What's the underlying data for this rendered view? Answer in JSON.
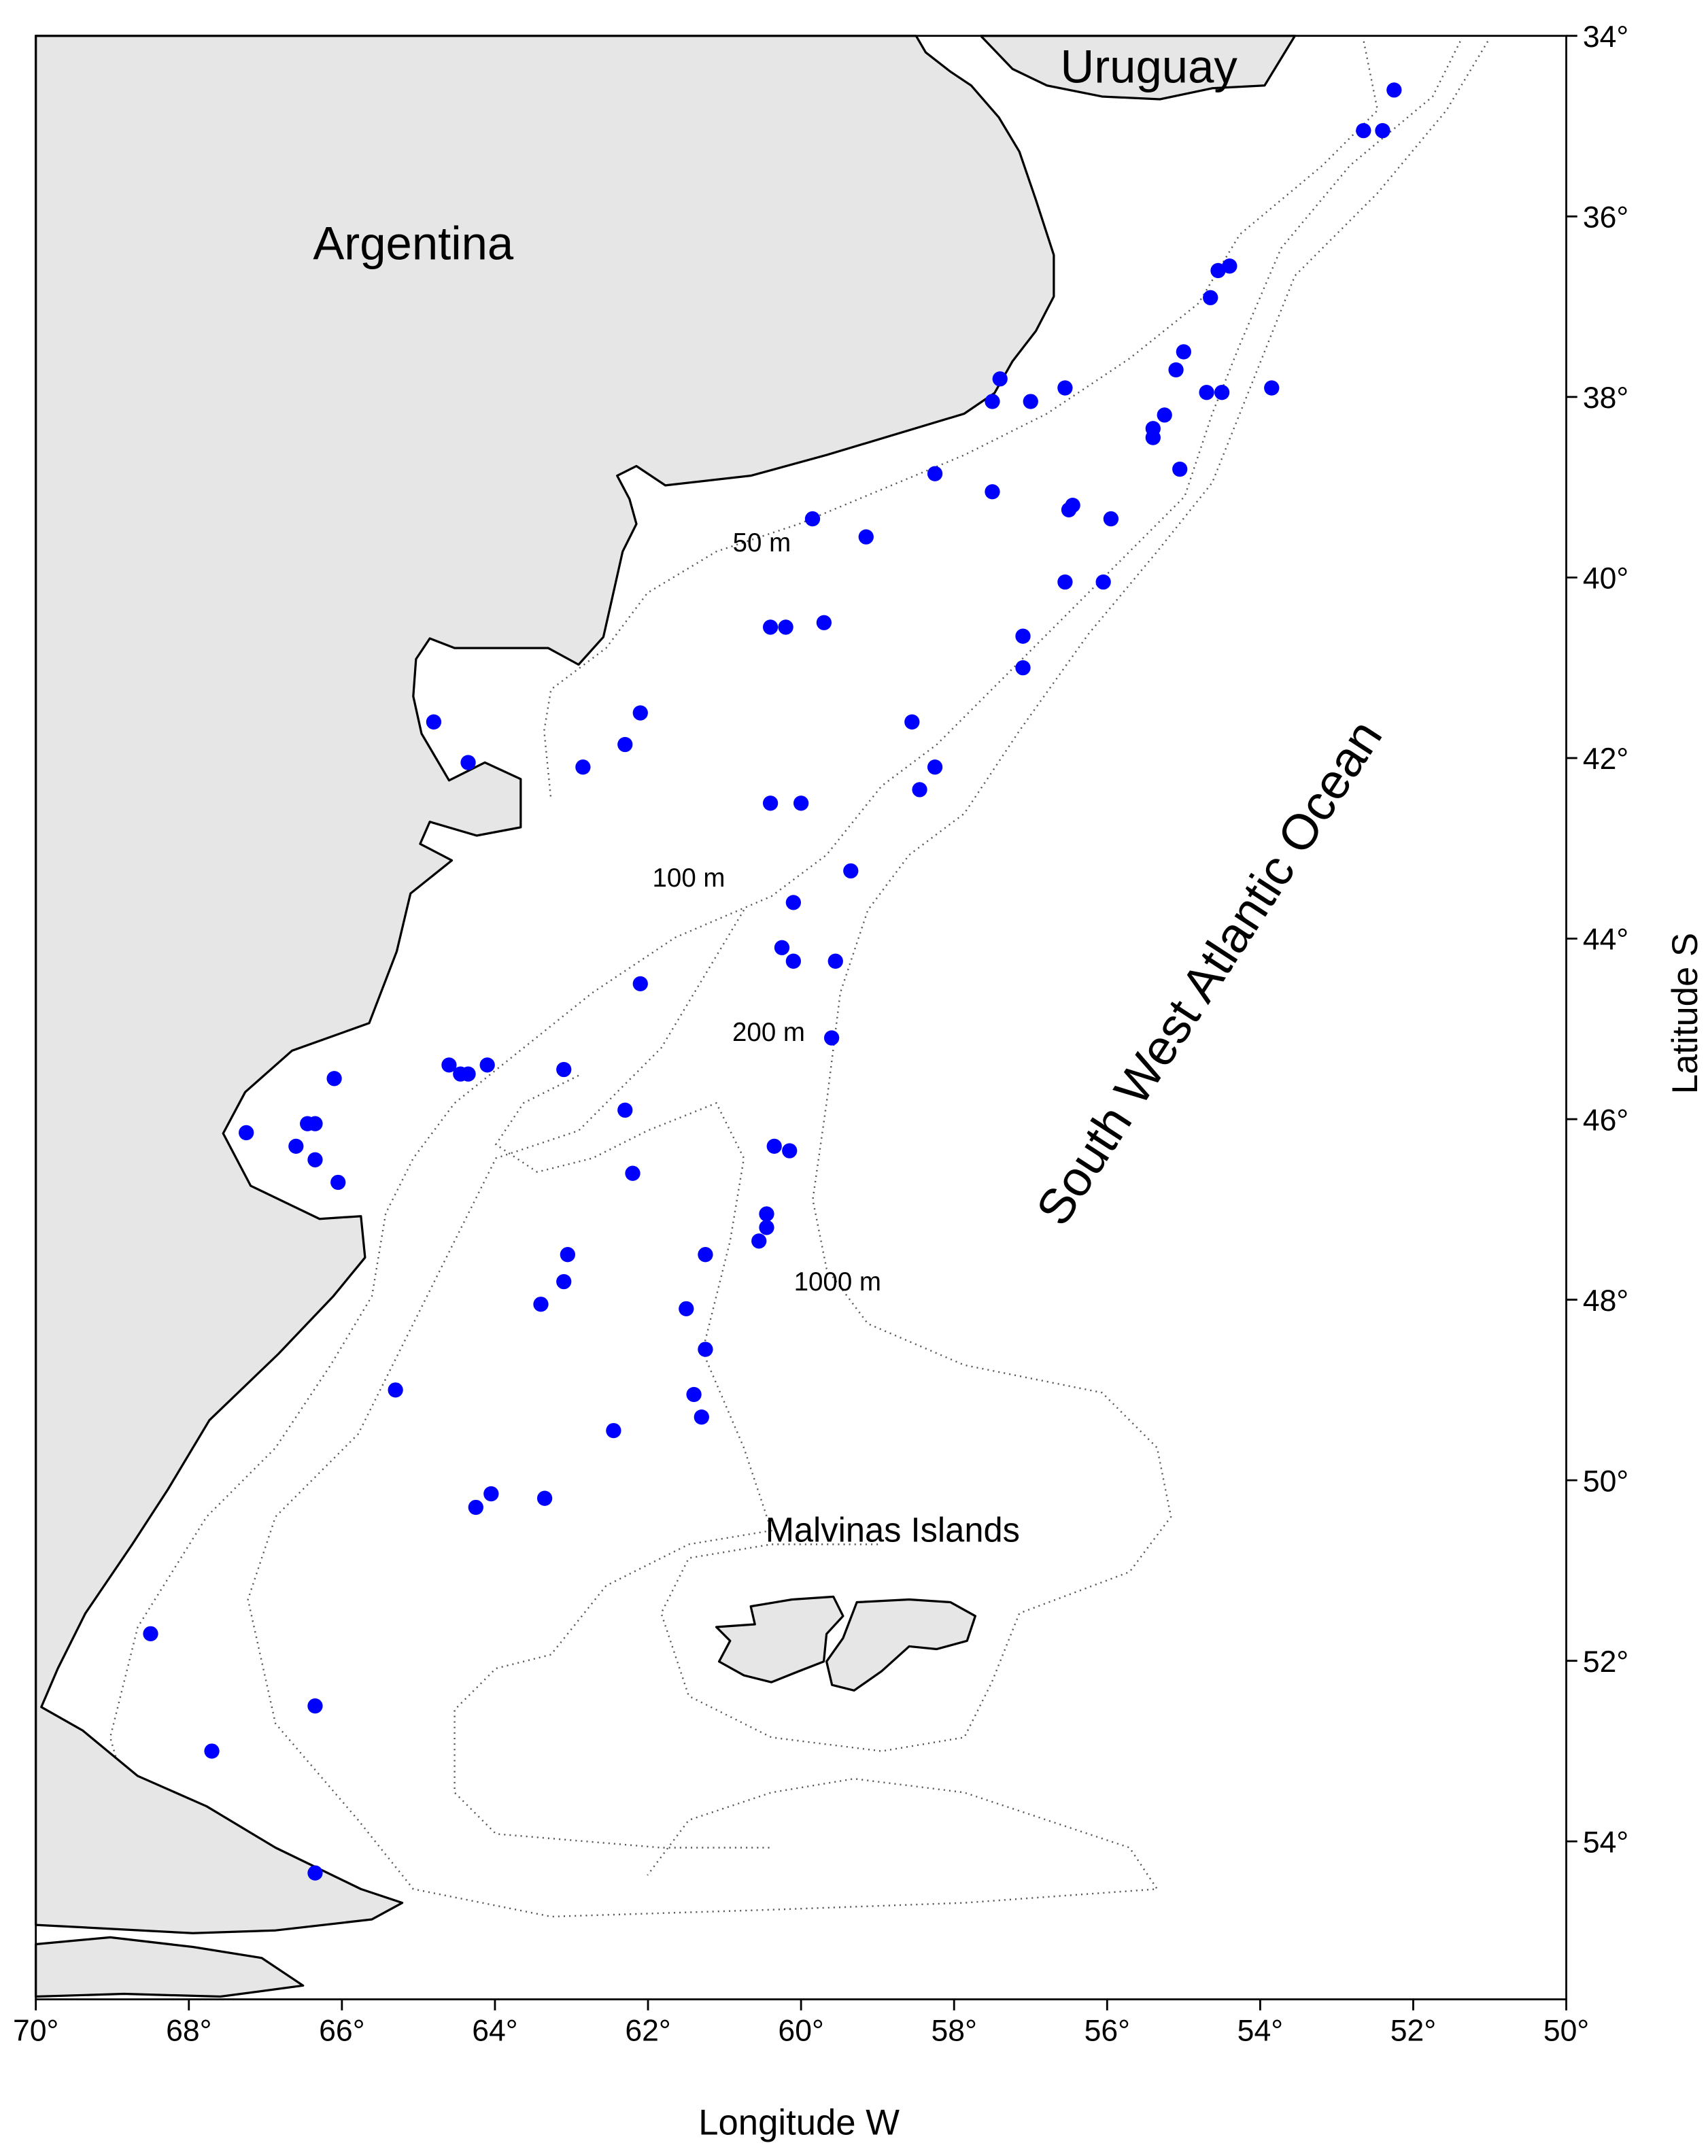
{
  "chart_data": {
    "type": "scatter",
    "x_label": "Longitude W",
    "y_label": "Latitude S",
    "annotations": [
      "Argentina",
      "Uruguay",
      "South West Atlantic Ocean",
      "Malvinas Islands",
      "50 m",
      "100 m",
      "200 m",
      "1000 m"
    ],
    "color": "#0000ff",
    "xlim": [
      70,
      50
    ],
    "ylim": [
      34,
      55.75
    ],
    "xticks": [
      {
        "value": 70,
        "label": "70°"
      },
      {
        "value": 68,
        "label": "68°"
      },
      {
        "value": 66,
        "label": "66°"
      },
      {
        "value": 64,
        "label": "64°"
      },
      {
        "value": 62,
        "label": "62°"
      },
      {
        "value": 60,
        "label": "60°"
      },
      {
        "value": 58,
        "label": "58°"
      },
      {
        "value": 56,
        "label": "56°"
      },
      {
        "value": 54,
        "label": "54°"
      },
      {
        "value": 52,
        "label": "52°"
      },
      {
        "value": 50,
        "label": "50°"
      }
    ],
    "yticks": [
      {
        "value": 34,
        "label": "34°"
      },
      {
        "value": 36,
        "label": "36°"
      },
      {
        "value": 38,
        "label": "38°"
      },
      {
        "value": 40,
        "label": "40°"
      },
      {
        "value": 42,
        "label": "42°"
      },
      {
        "value": 44,
        "label": "44°"
      },
      {
        "value": 46,
        "label": "46°"
      },
      {
        "value": 48,
        "label": "48°"
      },
      {
        "value": 50,
        "label": "50°"
      },
      {
        "value": 52,
        "label": "52°"
      },
      {
        "value": 54,
        "label": "54°"
      }
    ],
    "x": [
      52.25,
      52.65,
      52.4,
      54.4,
      54.55,
      54.65,
      55.0,
      55.1,
      57.4,
      57.5,
      57.0,
      56.55,
      54.7,
      54.5,
      53.85,
      55.25,
      55.4,
      55.4,
      55.05,
      58.25,
      57.5,
      56.45,
      56.5,
      55.95,
      59.85,
      59.15,
      56.55,
      56.05,
      60.4,
      60.2,
      59.7,
      57.1,
      57.1,
      64.8,
      62.1,
      58.55,
      62.3,
      64.35,
      62.85,
      58.25,
      58.45,
      60.4,
      60.0,
      59.35,
      60.1,
      60.25,
      60.1,
      59.55,
      62.1,
      59.6,
      66.1,
      64.6,
      64.45,
      64.35,
      64.1,
      63.1,
      62.3,
      67.25,
      66.45,
      66.35,
      66.6,
      66.35,
      66.05,
      60.35,
      60.15,
      62.2,
      60.45,
      60.45,
      60.55,
      63.05,
      61.25,
      63.1,
      63.4,
      61.5,
      61.25,
      65.3,
      61.4,
      61.3,
      62.45,
      64.05,
      63.35,
      64.25,
      68.5,
      66.35,
      67.7,
      66.35
    ],
    "y": [
      34.6,
      35.05,
      35.05,
      36.55,
      36.6,
      36.9,
      37.5,
      37.7,
      37.8,
      38.05,
      38.05,
      37.9,
      37.95,
      37.95,
      37.9,
      38.2,
      38.35,
      38.45,
      38.8,
      38.85,
      39.05,
      39.2,
      39.25,
      39.35,
      39.35,
      39.55,
      40.05,
      40.05,
      40.55,
      40.55,
      40.5,
      40.65,
      41.0,
      41.6,
      41.5,
      41.6,
      41.85,
      42.05,
      42.1,
      42.1,
      42.35,
      42.5,
      42.5,
      43.25,
      43.6,
      44.1,
      44.25,
      44.25,
      44.5,
      45.1,
      45.55,
      45.4,
      45.5,
      45.5,
      45.4,
      45.45,
      45.9,
      46.15,
      46.05,
      46.05,
      46.3,
      46.45,
      46.7,
      46.3,
      46.35,
      46.6,
      47.05,
      47.2,
      47.35,
      47.5,
      47.5,
      47.8,
      48.05,
      48.1,
      48.55,
      49.0,
      49.05,
      49.3,
      49.45,
      50.15,
      50.2,
      50.3,
      51.7,
      52.5,
      53.0,
      54.35
    ]
  }
}
